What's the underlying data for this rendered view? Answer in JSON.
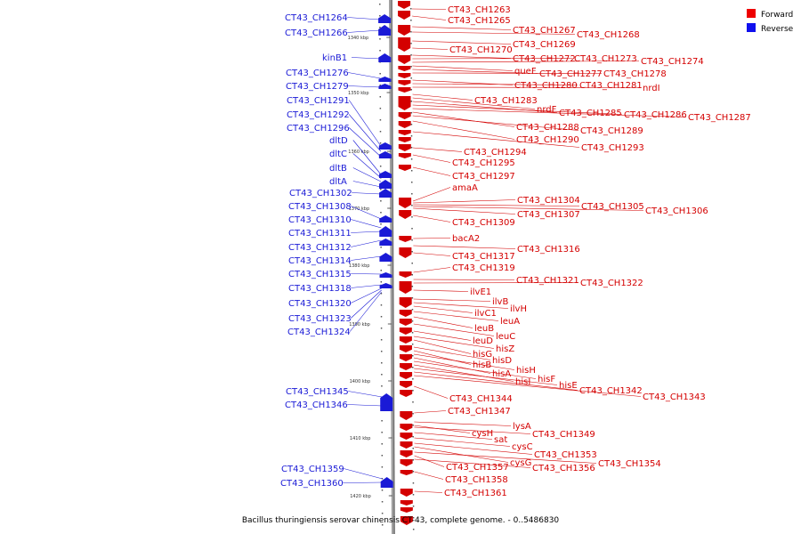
{
  "caption": "Bacillus thuringiensis serovar chinensis CT-43, complete genome. - 0..5486830",
  "legend": [
    {
      "label": "Forward",
      "color": "#ee0000"
    },
    {
      "label": "Reverse",
      "color": "#1010ee"
    }
  ],
  "ticks": [
    "1340 kbp",
    "1350 kbp",
    "1360 kbp",
    "1370 kbp",
    "1380 kbp",
    "1390 kbp",
    "1400 kbp",
    "1410 kbp",
    "1420 kbp"
  ],
  "forward_genes": [
    "CT43_CH1263",
    "CT43_CH1265",
    "CT43_CH1267",
    "CT43_CH1268",
    "CT43_CH1269",
    "CT43_CH1270",
    "CT43_CH1272",
    "CT43_CH1273",
    "CT43_CH1274",
    "queF",
    "CT43_CH1277",
    "CT43_CH1278",
    "CT43_CH1280",
    "CT43_CH1281",
    "nrdI",
    "CT43_CH1283",
    "nrdF",
    "CT43_CH1285",
    "CT43_CH1286",
    "CT43_CH1287",
    "CT43_CH1288",
    "CT43_CH1289",
    "CT43_CH1290",
    "CT43_CH1293",
    "CT43_CH1294",
    "CT43_CH1295",
    "CT43_CH1297",
    "amaA",
    "CT43_CH1304",
    "CT43_CH1305",
    "CT43_CH1306",
    "CT43_CH1307",
    "CT43_CH1309",
    "bacA2",
    "CT43_CH1316",
    "CT43_CH1317",
    "CT43_CH1319",
    "CT43_CH1321",
    "CT43_CH1322",
    "ilvE1",
    "ilvB",
    "ilvH",
    "ilvC1",
    "leuA",
    "leuB",
    "leuC",
    "leuD",
    "hisZ",
    "hisG",
    "hisD",
    "hisB",
    "hisH",
    "hisA",
    "hisF",
    "hisI",
    "hisE",
    "CT43_CH1342",
    "CT43_CH1343",
    "CT43_CH1344",
    "CT43_CH1347",
    "lysA",
    "cysH",
    "CT43_CH1349",
    "sat",
    "cysC",
    "CT43_CH1353",
    "cysG",
    "CT43_CH1354",
    "CT43_CH1357",
    "CT43_CH1356",
    "CT43_CH1358",
    "CT43_CH1361"
  ],
  "reverse_genes": [
    "CT43_CH1264",
    "CT43_CH1266",
    "kinB1",
    "CT43_CH1276",
    "CT43_CH1279",
    "CT43_CH1291",
    "CT43_CH1292",
    "CT43_CH1296",
    "dltD",
    "dltC",
    "dltB",
    "dltA",
    "CT43_CH1302",
    "CT43_CH1308",
    "CT43_CH1310",
    "CT43_CH1311",
    "CT43_CH1312",
    "CT43_CH1314",
    "CT43_CH1315",
    "CT43_CH1318",
    "CT43_CH1320",
    "CT43_CH1323",
    "CT43_CH1324",
    "CT43_CH1345",
    "CT43_CH1346",
    "CT43_CH1359",
    "CT43_CH1360"
  ]
}
